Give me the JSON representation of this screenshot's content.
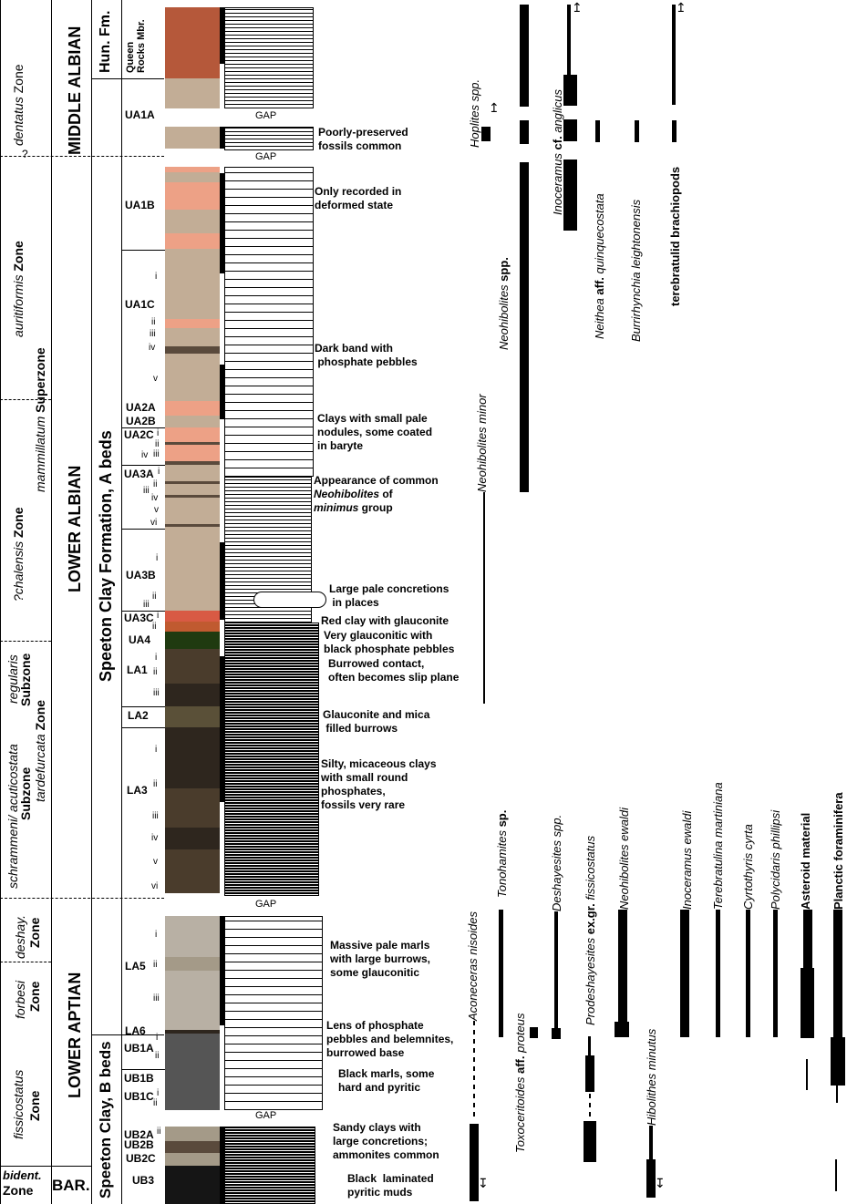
{
  "figure": {
    "columns": {
      "zones": [
        {
          "label_italic": "dentatus",
          "label_rest": " Zone"
        },
        {
          "label_italic": "auritiformis",
          "label_rest": " Zone"
        },
        {
          "label_italic": "mammillatum",
          "label_rest": " Superzone"
        },
        {
          "label_italic": "?chalensis",
          "label_rest": " Zone"
        },
        {
          "label_italic": "schrammeni/ acuticostata",
          "label_rest": "Subzone"
        },
        {
          "label_italic": "regularis",
          "label_rest": "Subzone"
        },
        {
          "label_italic": "tardefurcata",
          "label_rest": " Zone"
        },
        {
          "label_italic": "deshay.",
          "label_rest": "Zone"
        },
        {
          "label_italic": "forbesi",
          "label_rest": "Zone"
        },
        {
          "label_italic": "fissicostatus",
          "label_rest": "Zone"
        },
        {
          "label_italic": "bident.",
          "label_rest": "Zone"
        }
      ],
      "zone_question": "?",
      "stages": [
        "MIDDLE ALBIAN",
        "LOWER ALBIAN",
        "LOWER APTIAN",
        "BAR."
      ],
      "formations": [
        "Hun. Fm.",
        "Speeton Clay Formation, A beds",
        "Speeton Clay, B beds"
      ],
      "member": "Queen Rocks Mbr."
    },
    "units": [
      "UA1A",
      "UA1B",
      "UA1C",
      "UA2A",
      "UA2B",
      "UA2C",
      "UA3A",
      "UA3B",
      "UA3C",
      "UA4",
      "LA1",
      "LA2",
      "LA3",
      "LA5",
      "LA6",
      "UB1A",
      "UB1B",
      "UB1C",
      "UB2A",
      "UB2B",
      "UB2C",
      "UB3"
    ],
    "subunits": {
      "UA1C": [
        "i",
        "ii",
        "iii",
        "iv",
        "v"
      ],
      "UA2C": [
        "i",
        "ii",
        "iii",
        "iv"
      ],
      "UA3A": [
        "i",
        "ii",
        "iii",
        "iv",
        "v",
        "vi"
      ],
      "UA3B": [
        "i",
        "ii",
        "iii"
      ],
      "UA3C": [
        "i",
        "ii"
      ],
      "LA1": [
        "i",
        "ii",
        "iii"
      ],
      "LA3": [
        "i",
        "ii",
        "iii",
        "iv",
        "v",
        "vi"
      ],
      "LA5": [
        "i",
        "ii",
        "iii"
      ],
      "UB1A": [
        "i",
        "ii"
      ],
      "UB1C": [
        "i",
        "ii"
      ],
      "UB2A": [
        "i",
        "ii"
      ]
    },
    "gap_label": "GAP",
    "descriptions": [
      "Poorly-preserved\nfossils common",
      "Only recorded in\ndeformed state",
      "Dark band with\n phosphate pebbles",
      "Clays with small pale\nnodules, some coated\nin baryte",
      "Appearance of common",
      "Neohibolites",
      " of",
      "minimus",
      " group",
      "Large pale concretions\n in places",
      "Red clay with glauconite",
      "Very glauconitic with\nblack phosphate pebbles",
      "Burrowed contact,\noften becomes slip plane",
      "Glauconite and mica\n filled burrows",
      "Silty, micaceous clays\nwith small round\nphosphates,\nfossils very rare",
      "Massive pale marls\nwith large burrows,\nsome glauconitic",
      "Lens of phosphate\npebbles and belemnites,\nburrowed base",
      "Black marls, some\nhard and pyritic",
      "Sandy clays with\nlarge concretions;\nammonites common",
      "Black  laminated\npyritic muds"
    ],
    "colors": {
      "red_brown": "#b5583a",
      "tan": "#c2ad96",
      "salmon": "#eda186",
      "dark_band": "#5a4a3c",
      "red": "#d85a44",
      "orange_red": "#c05a30",
      "glauconite_green": "#1f3a10",
      "dark_brown": "#4a3c2c",
      "olive": "#5a5038",
      "very_dark": "#2e261e",
      "pale_grey": "#b8b0a4",
      "grey_mid": "#a49a88",
      "charcoal": "#555555",
      "black": "#151515"
    },
    "taxa_upper": [
      {
        "italic": "Hoplites",
        "rest": " spp.",
        "rest_italic": true
      },
      {
        "italic": "Neohibolites",
        "rest": " spp.",
        "rest_italic": false
      },
      {
        "italic": "Inoceramus",
        "rest": " cf. ",
        "rest2": "anglicus"
      },
      {
        "italic": "Neithea",
        "rest": " aff. ",
        "rest2": "quinquecostata"
      },
      {
        "italic": "Burrirhynchia leightonensis",
        "rest": ""
      },
      {
        "italic": "",
        "rest": "terebratulid brachiopods"
      },
      {
        "italic": "Neohibolites minor",
        "rest": ""
      }
    ],
    "taxa_lower": [
      {
        "italic": "Aconeceras nisoides",
        "rest": ""
      },
      {
        "italic": "Tonohamites",
        "rest": " sp."
      },
      {
        "italic": "Toxoceritoides",
        "rest": " aff. ",
        "rest2": "proteus"
      },
      {
        "italic": "Deshayesites spp.",
        "rest": ""
      },
      {
        "italic": "Prodeshayesites",
        "rest": " ex.gr. ",
        "rest2": "fissicostatus"
      },
      {
        "italic": "Neohibolites ewaldi",
        "rest": ""
      },
      {
        "italic": "Hibolithes minutus",
        "rest": ""
      },
      {
        "italic": "Inoceramus ewaldi",
        "rest": ""
      },
      {
        "italic": "Terebratulina martiniana",
        "rest": ""
      },
      {
        "italic": "Cyrtothyris cyrta",
        "rest": ""
      },
      {
        "italic": "Polycidaris phillipsi",
        "rest": ""
      },
      {
        "italic": "",
        "rest": "Asteroid material"
      },
      {
        "italic": "",
        "rest": "Planctic foraminifera"
      }
    ]
  }
}
